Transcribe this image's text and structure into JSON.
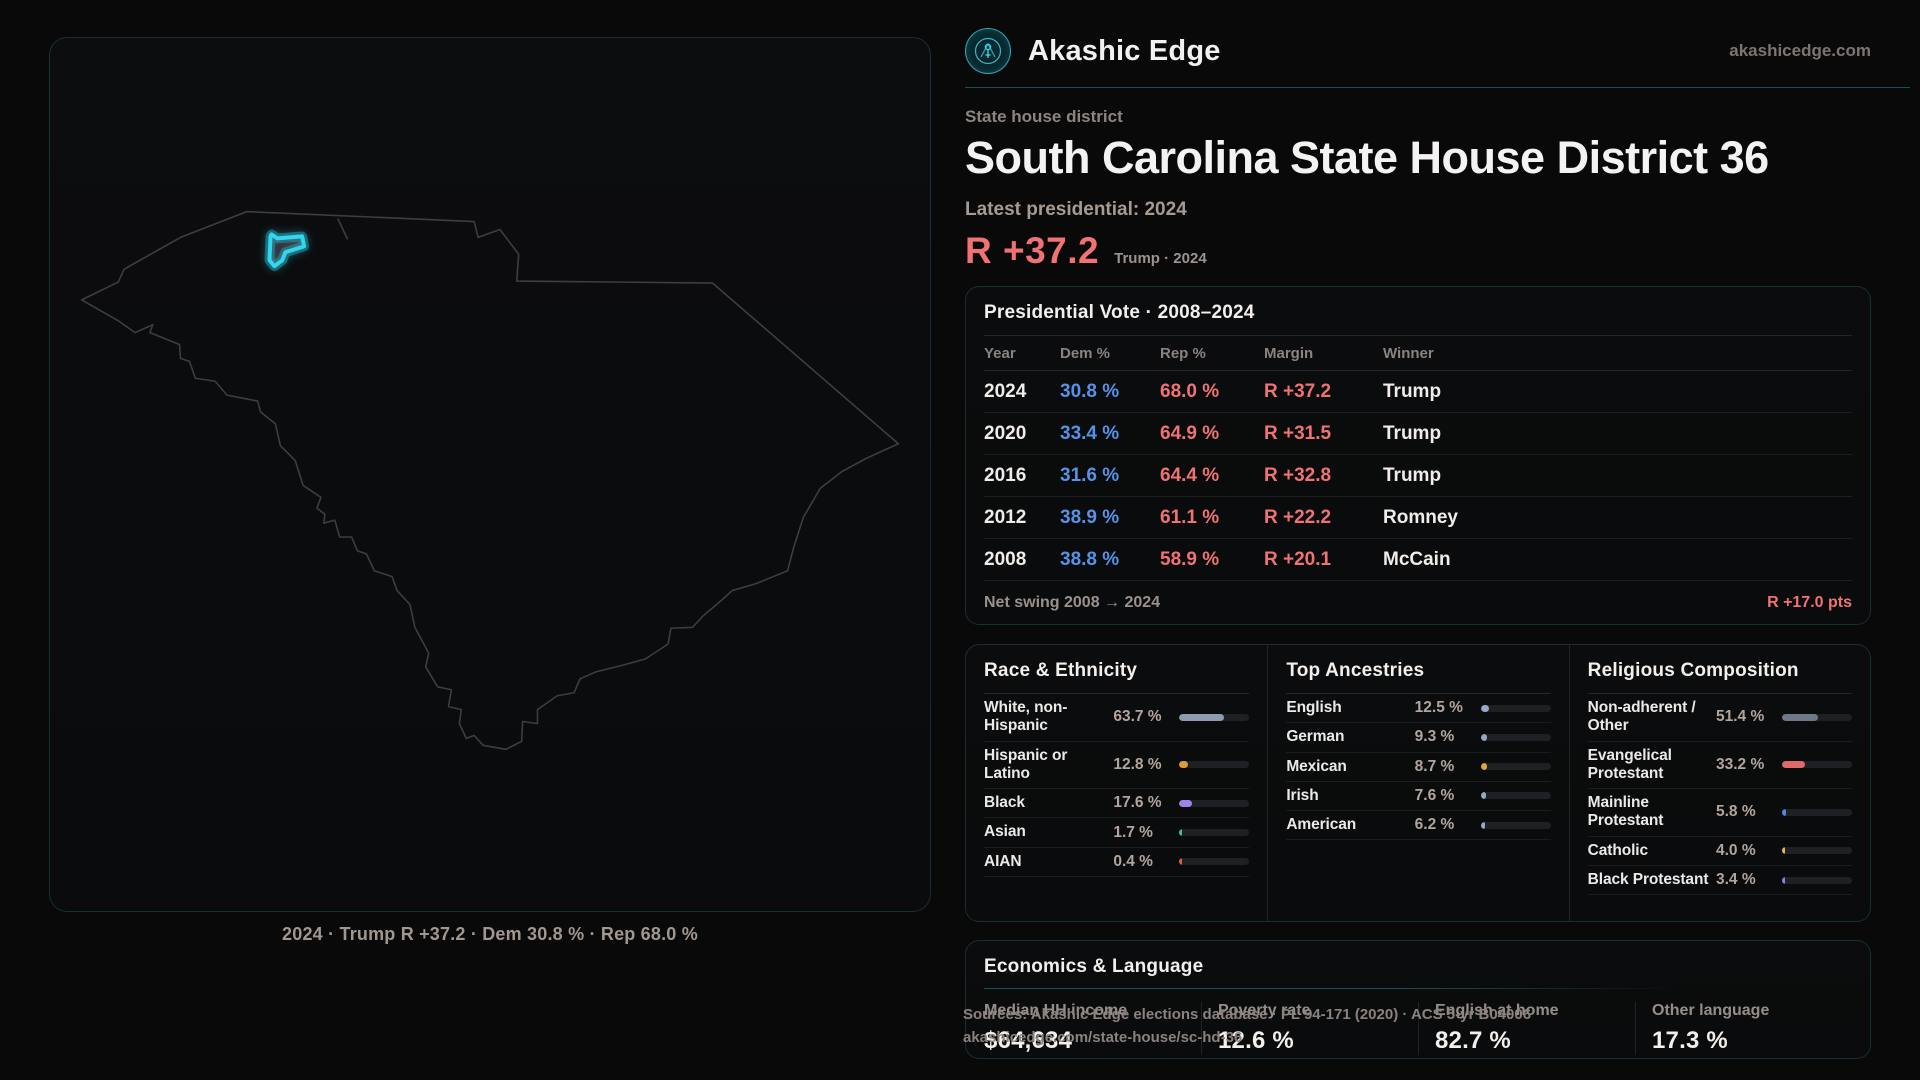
{
  "brand": {
    "name": "Akashic Edge",
    "url": "akashicedge.com"
  },
  "header": {
    "eyebrow": "State house district",
    "title": "South Carolina State House District 36",
    "latest_label": "Latest presidential: 2024",
    "margin_value": "R +37.2",
    "margin_caption": "Trump · 2024"
  },
  "map": {
    "caption": "2024 · Trump R +37.2 · Dem 30.8 % · Rep 68.0 %"
  },
  "colors": {
    "accent_teal": "#2fd8f0",
    "dem_blue": "#5592e8",
    "rep_red": "#f17272"
  },
  "presidential": {
    "title": "Presidential Vote · 2008–2024",
    "columns": {
      "year": "Year",
      "dem": "Dem %",
      "rep": "Rep %",
      "margin": "Margin",
      "winner": "Winner"
    },
    "rows": [
      {
        "year": "2024",
        "dem": "30.8 %",
        "rep": "68.0 %",
        "margin": "R +37.2",
        "winner": "Trump"
      },
      {
        "year": "2020",
        "dem": "33.4 %",
        "rep": "64.9 %",
        "margin": "R +31.5",
        "winner": "Trump"
      },
      {
        "year": "2016",
        "dem": "31.6 %",
        "rep": "64.4 %",
        "margin": "R +32.8",
        "winner": "Trump"
      },
      {
        "year": "2012",
        "dem": "38.9 %",
        "rep": "61.1 %",
        "margin": "R +22.2",
        "winner": "Romney"
      },
      {
        "year": "2008",
        "dem": "38.8 %",
        "rep": "58.9 %",
        "margin": "R +20.1",
        "winner": "McCain"
      }
    ],
    "net_swing_label": "Net swing 2008 → 2024",
    "net_swing_value": "R +17.0 pts"
  },
  "race": {
    "title": "Race & Ethnicity",
    "rows": [
      {
        "label": "White, non-Hispanic",
        "value": "63.7 %",
        "pct": 63.7,
        "color": "#8e9ab0"
      },
      {
        "label": "Hispanic or Latino",
        "value": "12.8 %",
        "pct": 12.8,
        "color": "#e09a38"
      },
      {
        "label": "Black",
        "value": "17.6 %",
        "pct": 17.6,
        "color": "#9c84ea"
      },
      {
        "label": "Asian",
        "value": "1.7 %",
        "pct": 1.7,
        "color": "#2fc98f"
      },
      {
        "label": "AIAN",
        "value": "0.4 %",
        "pct": 0.4,
        "color": "#d1662c"
      }
    ]
  },
  "ancestries": {
    "title": "Top Ancestries",
    "rows": [
      {
        "label": "English",
        "value": "12.5 %",
        "pct": 12.5,
        "color": "#93a9c6"
      },
      {
        "label": "German",
        "value": "9.3 %",
        "pct": 9.3,
        "color": "#93a9c6"
      },
      {
        "label": "Mexican",
        "value": "8.7 %",
        "pct": 8.7,
        "color": "#e0a63c"
      },
      {
        "label": "Irish",
        "value": "7.6 %",
        "pct": 7.6,
        "color": "#93a9c6"
      },
      {
        "label": "American",
        "value": "6.2 %",
        "pct": 6.2,
        "color": "#93a9c6"
      }
    ]
  },
  "religion": {
    "title": "Religious Composition",
    "rows": [
      {
        "label": "Non-adherent / Other",
        "value": "51.4 %",
        "pct": 51.4,
        "color": "#6e7886"
      },
      {
        "label": "Evangelical Protestant",
        "value": "33.2 %",
        "pct": 33.2,
        "color": "#e06a6a"
      },
      {
        "label": "Mainline Protestant",
        "value": "5.8 %",
        "pct": 5.8,
        "color": "#4f86e8"
      },
      {
        "label": "Catholic",
        "value": "4.0 %",
        "pct": 4.0,
        "color": "#e6b93e"
      },
      {
        "label": "Black Protestant",
        "value": "3.4 %",
        "pct": 3.4,
        "color": "#8f80e8"
      }
    ]
  },
  "economics": {
    "title": "Economics & Language",
    "stats": [
      {
        "label": "Median HH income",
        "value": "$64,634"
      },
      {
        "label": "Poverty rate",
        "value": "12.6 %"
      },
      {
        "label": "English at home",
        "value": "82.7 %"
      },
      {
        "label": "Other language",
        "value": "17.3 %"
      }
    ]
  },
  "footer": {
    "line1": "Sources: Akashic Edge elections database · PL 94-171 (2020) · ACS 5-yr B04006",
    "line2": "akashicedge.com/state-house/sc-hd-36"
  }
}
